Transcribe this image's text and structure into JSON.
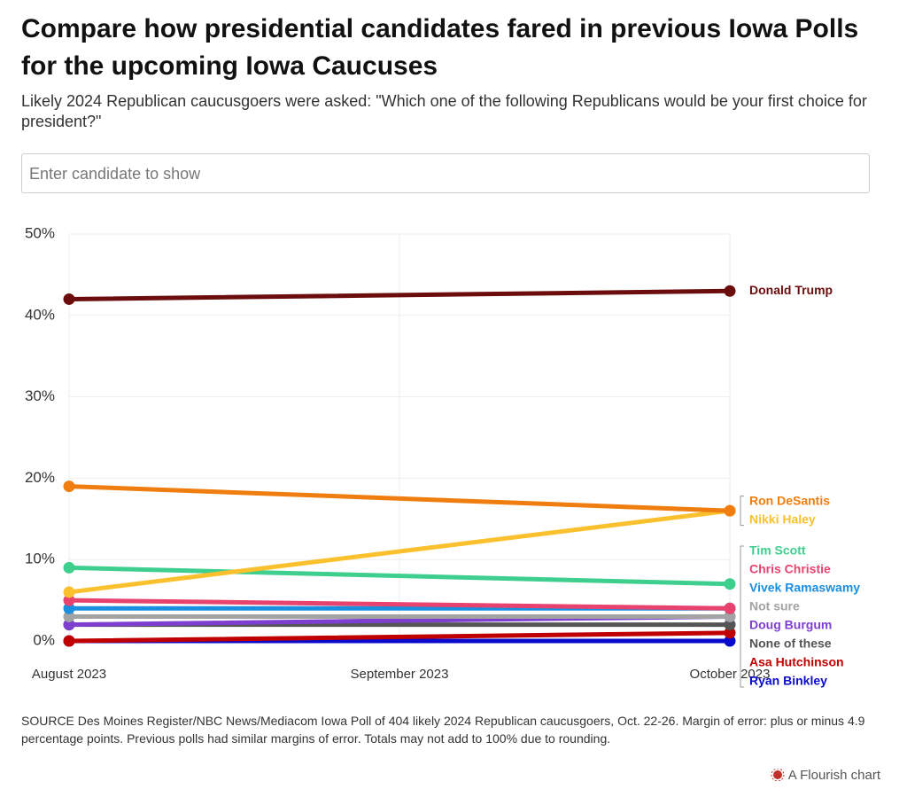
{
  "title": "Compare how presidential candidates fared in previous Iowa Polls for the upcoming Iowa Caucuses",
  "subtitle": "Likely 2024 Republican caucusgoers were asked: \"Which one of the following Republicans would be your first choice for president?\"",
  "search_placeholder": "Enter candidate to show",
  "chart_data": {
    "type": "line",
    "x": [
      "2023-08",
      "2023-10"
    ],
    "xlim": [
      "2023-08",
      "2023-10"
    ],
    "xticks": [
      {
        "value": "2023-08",
        "label": "August 2023"
      },
      {
        "value": "2023-09",
        "label": "September 2023"
      },
      {
        "value": "2023-10",
        "label": "October 2023"
      }
    ],
    "ylim": [
      0,
      50
    ],
    "yticks": [
      {
        "value": 0,
        "label": "0%"
      },
      {
        "value": 10,
        "label": "10%"
      },
      {
        "value": 20,
        "label": "20%"
      },
      {
        "value": 30,
        "label": "30%"
      },
      {
        "value": 40,
        "label": "40%"
      },
      {
        "value": 50,
        "label": "50%"
      }
    ],
    "grid": true,
    "series": [
      {
        "name": "Donald Trump",
        "color": "#6b0d0d",
        "values": [
          42,
          43
        ]
      },
      {
        "name": "Ron DeSantis",
        "color": "#ef7d0f",
        "values": [
          19,
          16
        ]
      },
      {
        "name": "Nikki Haley",
        "color": "#fbc02d",
        "values": [
          6,
          16
        ]
      },
      {
        "name": "Tim Scott",
        "color": "#3ecf8e",
        "values": [
          9,
          7
        ]
      },
      {
        "name": "Chris Christie",
        "color": "#e8436e",
        "values": [
          5,
          4
        ]
      },
      {
        "name": "Vivek Ramaswamy",
        "color": "#1a8fe0",
        "values": [
          4,
          4
        ]
      },
      {
        "name": "Not sure",
        "color": "#a3a3a3",
        "values": [
          3,
          3
        ]
      },
      {
        "name": "Doug Burgum",
        "color": "#7e3fd1",
        "values": [
          2,
          3
        ]
      },
      {
        "name": "None of these",
        "color": "#555555",
        "values": [
          2,
          2
        ]
      },
      {
        "name": "Asa Hutchinson",
        "color": "#c00000",
        "values": [
          0,
          1
        ]
      },
      {
        "name": "Ryan Binkley",
        "color": "#0a0acc",
        "values": [
          0,
          0
        ]
      }
    ]
  },
  "source": "SOURCE Des Moines Register/NBC News/Mediacom Iowa Poll of 404 likely 2024 Republican caucusgoers, Oct. 22-26. Margin of error: plus or minus 4.9 percentage points. Previous polls had similar margins of error. Totals may not add to 100% due to rounding.",
  "credit": "A Flourish chart"
}
